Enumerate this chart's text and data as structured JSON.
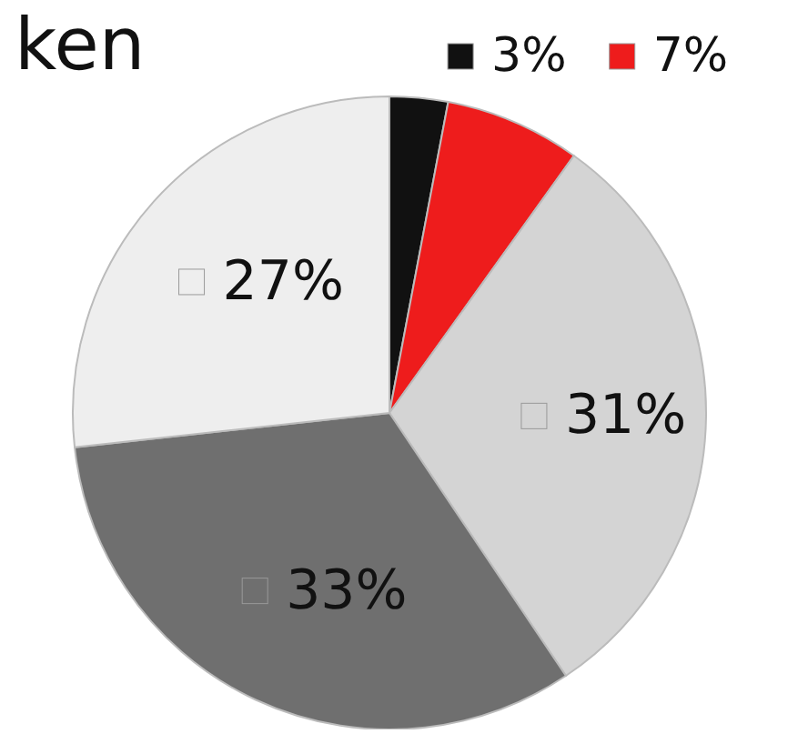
{
  "chart_data": {
    "type": "pie",
    "title": "ken",
    "categories": [
      null,
      null,
      null,
      null,
      null
    ],
    "values": [
      3,
      7,
      31,
      33,
      27
    ],
    "value_labels": [
      "3%",
      "7%",
      "31%",
      "33%",
      "27%"
    ],
    "colors": [
      "#111111",
      "#ee1c1c",
      "#d4d4d4",
      "#6f6f6f",
      "#eeeeee"
    ]
  }
}
